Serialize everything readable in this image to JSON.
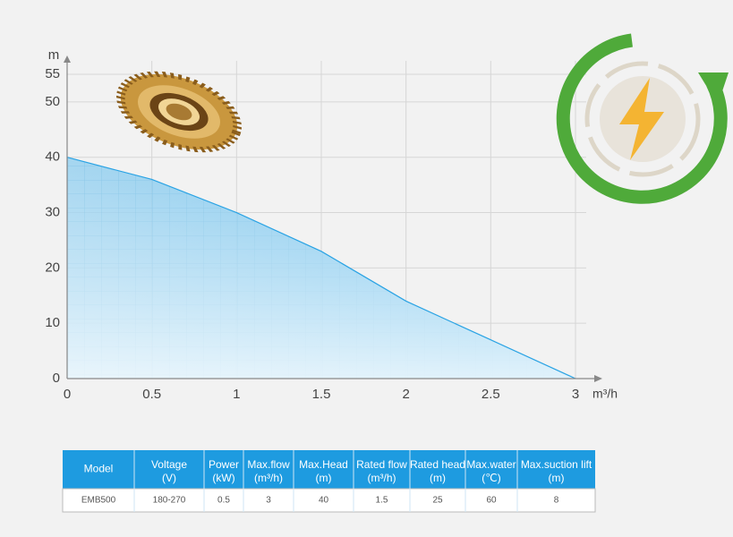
{
  "chart_data": {
    "type": "area",
    "x_label": "m³/h",
    "y_label": "m",
    "x": [
      0,
      0.5,
      1,
      1.5,
      2,
      2.5,
      3
    ],
    "values": [
      40,
      36,
      30,
      23,
      14,
      7,
      0
    ],
    "color": "#2aa3e4",
    "xlim": [
      0,
      3
    ],
    "xticks": [
      0,
      0.5,
      1,
      1.5,
      2,
      2.5,
      3
    ],
    "ylim": [
      0,
      55
    ],
    "yticks": [
      0,
      10,
      20,
      30,
      40,
      50,
      55
    ],
    "grid": true
  },
  "table": {
    "header": [
      [
        "Model"
      ],
      [
        "Voltage",
        "(V)"
      ],
      [
        "Power",
        "(kW)"
      ],
      [
        "Max.flow",
        "(m³/h)"
      ],
      [
        "Max.Head",
        "(m)"
      ],
      [
        "Rated flow",
        "(m³/h)"
      ],
      [
        "Rated head",
        "(m)"
      ],
      [
        "Max.water",
        "(℃)"
      ],
      [
        "Max.suction lift",
        "(m)"
      ]
    ],
    "rows": [
      [
        "EMB500",
        "180-270",
        "0.5",
        "3",
        "40",
        "1.5",
        "25",
        "60",
        "8"
      ]
    ]
  }
}
